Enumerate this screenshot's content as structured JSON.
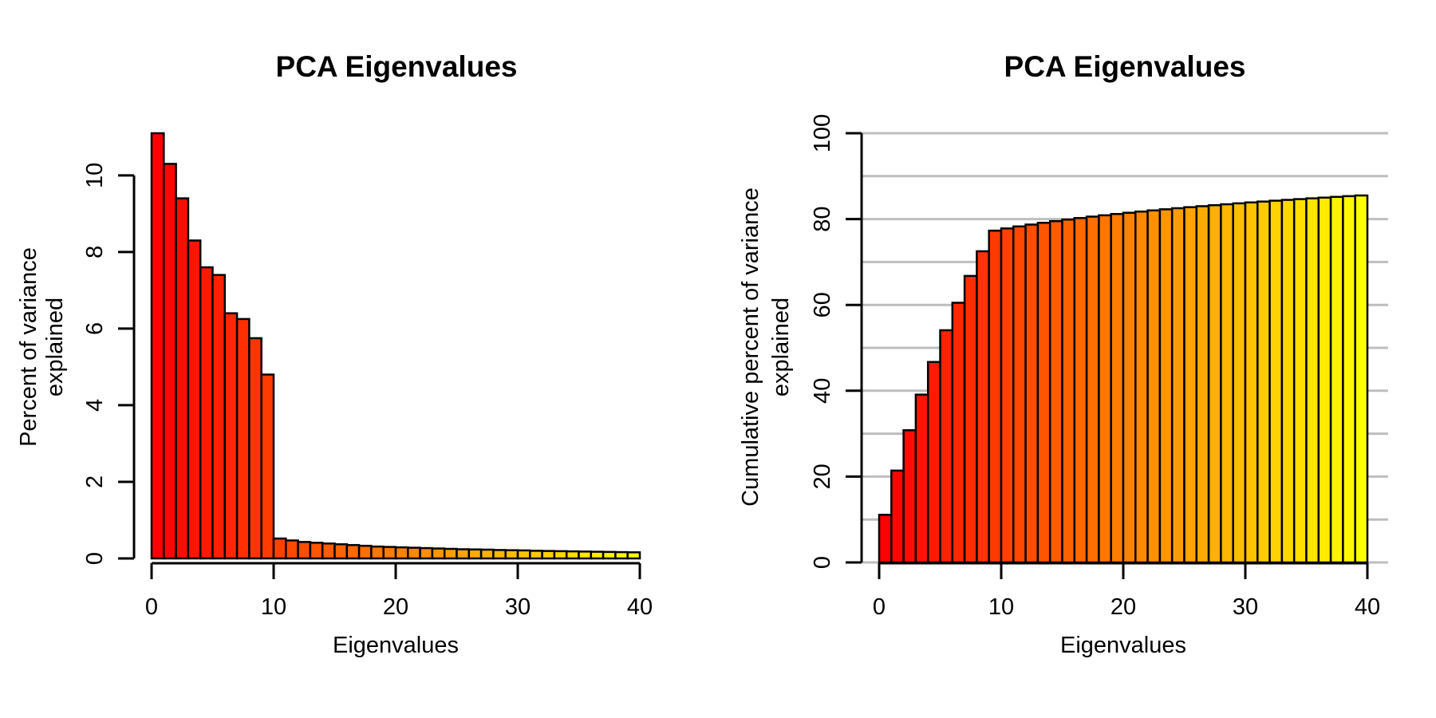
{
  "chart_data": [
    {
      "type": "bar",
      "title": "PCA Eigenvalues",
      "xlabel": "Eigenvalues",
      "ylabel_lines": [
        "Percent of variance",
        "explained"
      ],
      "xlim": [
        0,
        40
      ],
      "ylim": [
        0,
        11.1
      ],
      "x_ticks": [
        0,
        10,
        20,
        30,
        40
      ],
      "y_ticks": [
        0,
        2,
        4,
        6,
        8,
        10
      ],
      "grid": false,
      "color_gradient": [
        "#ff0000",
        "#ffff00"
      ],
      "values": [
        11.1,
        10.3,
        9.4,
        8.3,
        7.6,
        7.4,
        6.4,
        6.25,
        5.75,
        4.8,
        0.52,
        0.47,
        0.43,
        0.41,
        0.39,
        0.37,
        0.35,
        0.33,
        0.31,
        0.3,
        0.29,
        0.28,
        0.27,
        0.26,
        0.25,
        0.24,
        0.235,
        0.23,
        0.22,
        0.215,
        0.21,
        0.2,
        0.195,
        0.19,
        0.185,
        0.18,
        0.175,
        0.17,
        0.165,
        0.16
      ]
    },
    {
      "type": "bar",
      "title": "PCA Eigenvalues",
      "xlabel": "Eigenvalues",
      "ylabel_lines": [
        "Cumulative percent of variance",
        "explained"
      ],
      "xlim": [
        0,
        40
      ],
      "ylim": [
        0,
        100
      ],
      "x_ticks": [
        0,
        10,
        20,
        30,
        40
      ],
      "y_ticks": [
        0,
        20,
        40,
        60,
        80,
        100
      ],
      "grid": true,
      "grid_lines": [
        0,
        10,
        20,
        30,
        40,
        50,
        60,
        70,
        80,
        90,
        100
      ],
      "color_gradient": [
        "#ff0000",
        "#ffff00"
      ],
      "values": [
        11.1,
        21.4,
        30.8,
        39.1,
        46.7,
        54.1,
        60.5,
        66.75,
        72.5,
        77.3,
        77.82,
        78.29,
        78.72,
        79.13,
        79.52,
        79.89,
        80.24,
        80.57,
        80.88,
        81.18,
        81.47,
        81.75,
        82.02,
        82.28,
        82.53,
        82.77,
        83.0,
        83.23,
        83.45,
        83.67,
        83.88,
        84.08,
        84.28,
        84.47,
        84.65,
        84.83,
        85.0,
        85.17,
        85.34,
        85.5
      ]
    }
  ]
}
